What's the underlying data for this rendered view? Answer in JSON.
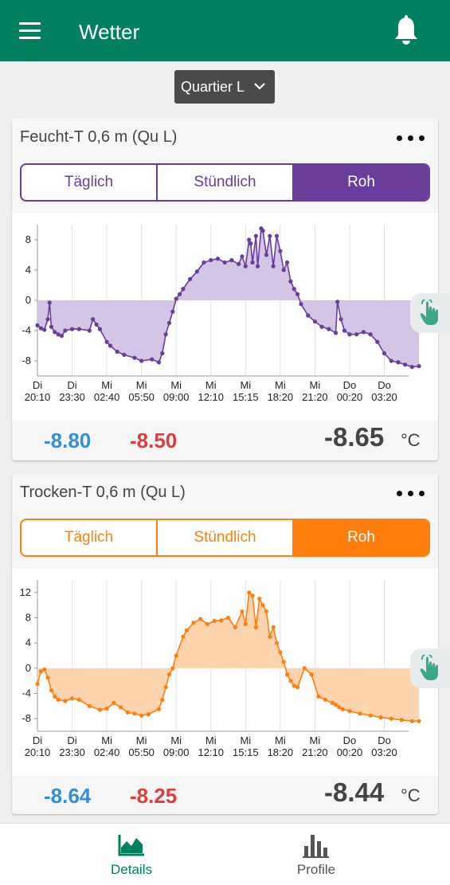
{
  "app": {
    "title": "Wetter",
    "icons": {
      "menu": "menu-icon",
      "notifications": "bell-icon"
    },
    "brand_color": "#008060"
  },
  "location_selector": {
    "selected": "Quartier L"
  },
  "cards": [
    {
      "title": "Feucht-T 0,6 m (Qu L)",
      "accent": "#6a3d9a",
      "fill": "#d4c4e6",
      "tabs": [
        {
          "label": "Täglich",
          "active": false
        },
        {
          "label": "Stündlich",
          "active": false
        },
        {
          "label": "Roh",
          "active": true
        }
      ],
      "stats": {
        "min": "-8.80",
        "max": "-8.50",
        "current": "-8.65",
        "unit": "°C"
      }
    },
    {
      "title": "Trocken-T 0,6 m (Qu L)",
      "accent": "#ff7f0e",
      "fill": "#fdd4ad",
      "tabs": [
        {
          "label": "Täglich",
          "active": false
        },
        {
          "label": "Stündlich",
          "active": false
        },
        {
          "label": "Roh",
          "active": true
        }
      ],
      "stats": {
        "min": "-8.64",
        "max": "-8.25",
        "current": "-8.44",
        "unit": "°C"
      }
    }
  ],
  "chart_data": [
    {
      "type": "area",
      "title": "Feucht-T 0,6 m (Qu L)",
      "xlabel": "",
      "ylabel": "",
      "ylim": [
        -10,
        10
      ],
      "yticks": [
        -8,
        -4,
        0,
        4,
        8
      ],
      "x_tick_labels": [
        [
          "Di",
          "20:10"
        ],
        [
          "Di",
          "23:30"
        ],
        [
          "Mi",
          "02:40"
        ],
        [
          "Mi",
          "05:50"
        ],
        [
          "Mi",
          "09:00"
        ],
        [
          "Mi",
          "12:10"
        ],
        [
          "Mi",
          "15:15"
        ],
        [
          "Mi",
          "18:20"
        ],
        [
          "Mi",
          "21:20"
        ],
        [
          "Do",
          "00:20"
        ],
        [
          "Do",
          "03:20"
        ]
      ],
      "baseline": 0,
      "color": "#6a3d9a",
      "series": [
        {
          "x": [
            0,
            0.1,
            0.2,
            0.3,
            0.35,
            0.4,
            0.5,
            0.6,
            0.7,
            0.8,
            1.0,
            1.2,
            1.5,
            1.6,
            1.7,
            1.8,
            2.0,
            2.1,
            2.3,
            2.5,
            2.8,
            3.0,
            3.3,
            3.5,
            3.6,
            3.7,
            3.8,
            3.9,
            4.0,
            4.1,
            4.2,
            4.4,
            4.6,
            4.8,
            5.0,
            5.2,
            5.4,
            5.6,
            5.8,
            5.9,
            6.0,
            6.1,
            6.15,
            6.2,
            6.3,
            6.35,
            6.45,
            6.5,
            6.6,
            6.7,
            6.8,
            6.9,
            7.0,
            7.1,
            7.2,
            7.3,
            7.4,
            7.5,
            7.6,
            7.8,
            8.0,
            8.2,
            8.4,
            8.6,
            8.65,
            8.75,
            8.85,
            9.0,
            9.2,
            9.4,
            9.6,
            9.8,
            10.0,
            10.2,
            10.4,
            10.6,
            10.8,
            11.0
          ],
          "y": [
            -3.3,
            -3.7,
            -3.9,
            -2.5,
            -0.3,
            -3.5,
            -4.2,
            -4.5,
            -4.7,
            -4.0,
            -3.8,
            -3.8,
            -4.0,
            -2.5,
            -3.2,
            -3.8,
            -5.5,
            -6.0,
            -6.8,
            -7.2,
            -7.6,
            -8.0,
            -7.8,
            -8.2,
            -7.0,
            -4.5,
            -3.0,
            -1.5,
            0.2,
            0.8,
            1.5,
            2.8,
            3.8,
            5.0,
            5.3,
            5.5,
            5.0,
            5.3,
            4.8,
            5.8,
            4.5,
            8.0,
            7.5,
            5.0,
            8.5,
            4.5,
            9.5,
            9.2,
            6.0,
            8.5,
            4.5,
            8.5,
            6.5,
            4.0,
            5.0,
            2.5,
            1.5,
            0.8,
            -0.5,
            -2.0,
            -2.8,
            -3.5,
            -3.8,
            -4.3,
            -0.2,
            -2.5,
            -4.0,
            -4.5,
            -4.5,
            -4.2,
            -4.5,
            -5.5,
            -7.0,
            -8.0,
            -8.2,
            -8.5,
            -8.8,
            -8.7
          ]
        }
      ]
    },
    {
      "type": "area",
      "title": "Trocken-T 0,6 m (Qu L)",
      "xlabel": "",
      "ylabel": "",
      "ylim": [
        -10,
        14
      ],
      "yticks": [
        -8,
        -4,
        0,
        4,
        8,
        12
      ],
      "x_tick_labels": [
        [
          "Di",
          "20:10"
        ],
        [
          "Di",
          "23:30"
        ],
        [
          "Mi",
          "02:40"
        ],
        [
          "Mi",
          "05:50"
        ],
        [
          "Mi",
          "09:00"
        ],
        [
          "Mi",
          "12:10"
        ],
        [
          "Mi",
          "15:15"
        ],
        [
          "Mi",
          "18:20"
        ],
        [
          "Mi",
          "21:20"
        ],
        [
          "Do",
          "00:20"
        ],
        [
          "Do",
          "03:20"
        ]
      ],
      "baseline": 0,
      "color": "#ff7f0e",
      "series": [
        {
          "x": [
            0,
            0.1,
            0.2,
            0.3,
            0.4,
            0.5,
            0.6,
            0.8,
            1.0,
            1.2,
            1.5,
            1.8,
            2.0,
            2.2,
            2.4,
            2.6,
            2.8,
            3.0,
            3.2,
            3.5,
            3.6,
            3.7,
            3.8,
            3.9,
            4.0,
            4.2,
            4.3,
            4.5,
            4.7,
            4.9,
            5.1,
            5.3,
            5.5,
            5.7,
            5.9,
            6.0,
            6.1,
            6.2,
            6.3,
            6.4,
            6.5,
            6.6,
            6.7,
            6.8,
            6.9,
            7.0,
            7.1,
            7.2,
            7.3,
            7.4,
            7.5,
            7.7,
            7.9,
            8.1,
            8.3,
            8.5,
            8.6,
            8.7,
            8.8,
            9.0,
            9.3,
            9.6,
            9.9,
            10.2,
            10.5,
            10.8,
            11.0
          ],
          "y": [
            -2.5,
            -0.5,
            -0.2,
            -1.5,
            -3.5,
            -4.5,
            -5.0,
            -5.2,
            -4.8,
            -5.0,
            -6.0,
            -6.6,
            -6.4,
            -5.5,
            -6.2,
            -7.0,
            -7.2,
            -7.5,
            -7.3,
            -6.5,
            -5.0,
            -3.0,
            -1.0,
            0.0,
            2.0,
            5.0,
            6.0,
            7.2,
            7.8,
            7.0,
            7.5,
            7.6,
            8.0,
            6.5,
            9.0,
            7.0,
            12.0,
            11.5,
            6.5,
            11.0,
            10.0,
            9.0,
            5.0,
            6.5,
            4.0,
            2.5,
            1.0,
            -1.0,
            -2.0,
            -2.8,
            -3.0,
            0.0,
            -1.0,
            -4.5,
            -5.0,
            -5.5,
            -5.8,
            -6.2,
            -6.5,
            -6.8,
            -7.2,
            -7.5,
            -7.8,
            -8.0,
            -8.2,
            -8.4,
            -8.4
          ]
        }
      ]
    }
  ],
  "bottom_nav": [
    {
      "label": "Details",
      "icon": "area-chart-icon",
      "active": true,
      "color": "#008060"
    },
    {
      "label": "Profile",
      "icon": "bar-chart-icon",
      "active": false,
      "color": "#555555"
    }
  ]
}
